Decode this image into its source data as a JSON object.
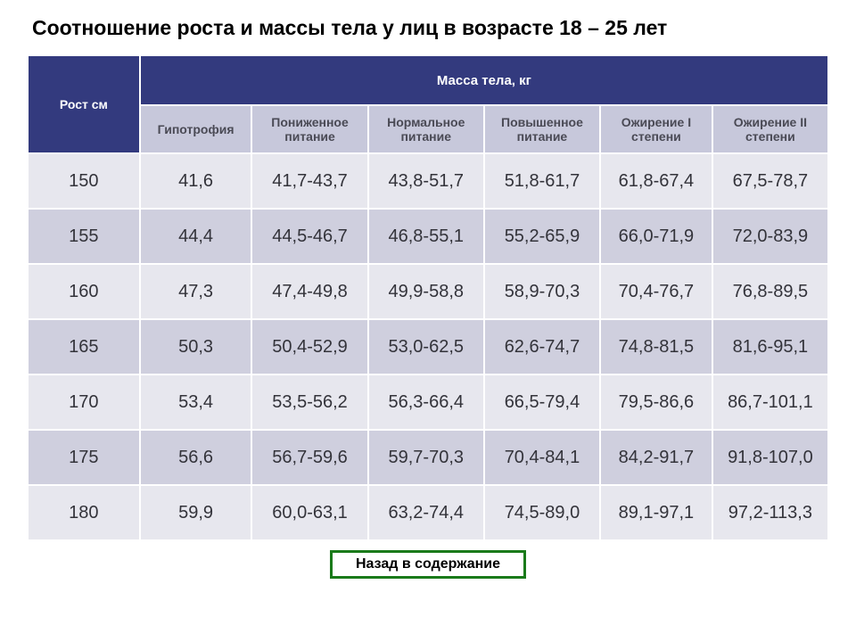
{
  "title": "Соотношение роста и массы тела у лиц в возрасте 18 – 25 лет",
  "table": {
    "header": {
      "row_label": "Рост см",
      "group_label": "Масса тела, кг",
      "columns": [
        "Гипотрофия",
        "Пониженное питание",
        "Нормальное питание",
        "Повышенное питание",
        "Ожирение I степени",
        "Ожирение II степени"
      ]
    },
    "rows": [
      {
        "h": "150",
        "c": [
          "41,6",
          "41,7-43,7",
          "43,8-51,7",
          "51,8-61,7",
          "61,8-67,4",
          "67,5-78,7"
        ]
      },
      {
        "h": "155",
        "c": [
          "44,4",
          "44,5-46,7",
          "46,8-55,1",
          "55,2-65,9",
          "66,0-71,9",
          "72,0-83,9"
        ]
      },
      {
        "h": "160",
        "c": [
          "47,3",
          "47,4-49,8",
          "49,9-58,8",
          "58,9-70,3",
          "70,4-76,7",
          "76,8-89,5"
        ]
      },
      {
        "h": "165",
        "c": [
          "50,3",
          "50,4-52,9",
          "53,0-62,5",
          "62,6-74,7",
          "74,8-81,5",
          "81,6-95,1"
        ]
      },
      {
        "h": "170",
        "c": [
          "53,4",
          "53,5-56,2",
          "56,3-66,4",
          "66,5-79,4",
          "79,5-86,6",
          "86,7-101,1"
        ]
      },
      {
        "h": "175",
        "c": [
          "56,6",
          "56,7-59,6",
          "59,7-70,3",
          "70,4-84,1",
          "84,2-91,7",
          "91,8-107,0"
        ]
      },
      {
        "h": "180",
        "c": [
          "59,9",
          "60,0-63,1",
          "63,2-74,4",
          "74,5-89,0",
          "89,1-97,1",
          "97,2-113,3"
        ]
      }
    ],
    "col_widths_pct": [
      14,
      14,
      14.5,
      14.5,
      14.5,
      14,
      14.5
    ],
    "colors": {
      "header_dark_bg": "#333a7e",
      "header_dark_fg": "#ffffff",
      "header_light_bg": "#c7c8db",
      "header_light_fg": "#4a4a55",
      "row_even_bg": "#e7e7ee",
      "row_odd_bg": "#cfcfde",
      "cell_fg": "#33333a",
      "border": "#ffffff"
    }
  },
  "back_button": {
    "label": "Назад в содержание",
    "border_color": "#1a7a1a"
  }
}
